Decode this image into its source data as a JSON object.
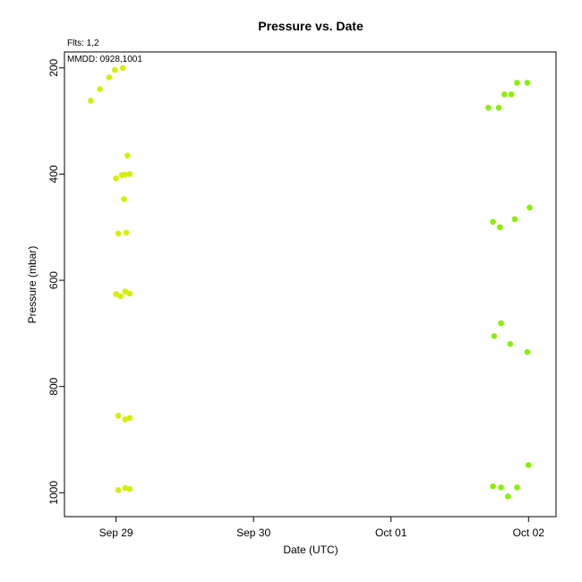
{
  "chart_data": {
    "type": "scatter",
    "title": "Pressure  vs. Date",
    "xlabel": "Date (UTC)",
    "ylabel": "Pressure (mbar)",
    "annotations": [
      "Flts: 1,2",
      "MMDD: 0928,1001"
    ],
    "x_ticks": [
      {
        "value": "2023-09-29T00:00",
        "label": "Sep 29"
      },
      {
        "value": "2023-09-30T00:00",
        "label": "Sep 30"
      },
      {
        "value": "2023-10-01T00:00",
        "label": "Oct 01"
      },
      {
        "value": "2023-10-02T00:00",
        "label": "Oct 02"
      }
    ],
    "y_ticks": [
      200,
      400,
      600,
      800,
      1000
    ],
    "xlim": [
      "2023-09-28T15:00",
      "2023-10-02T04:48"
    ],
    "ylim": [
      1045,
      170
    ],
    "y_reversed": true,
    "grid": false,
    "series": [
      {
        "color": "#d4f000",
        "points": [
          {
            "x": "2023-09-28T19:36",
            "y": 262
          },
          {
            "x": "2023-09-28T21:12",
            "y": 240
          },
          {
            "x": "2023-09-28T22:48",
            "y": 218
          },
          {
            "x": "2023-09-28T23:48",
            "y": 204
          },
          {
            "x": "2023-09-29T01:12",
            "y": 200
          },
          {
            "x": "2023-09-29T02:00",
            "y": 365
          },
          {
            "x": "2023-09-29T00:00",
            "y": 408
          },
          {
            "x": "2023-09-29T01:00",
            "y": 402
          },
          {
            "x": "2023-09-29T01:36",
            "y": 401
          },
          {
            "x": "2023-09-29T02:24",
            "y": 400
          },
          {
            "x": "2023-09-29T01:24",
            "y": 447
          },
          {
            "x": "2023-09-29T00:24",
            "y": 512
          },
          {
            "x": "2023-09-29T01:48",
            "y": 510
          },
          {
            "x": "2023-09-29T00:00",
            "y": 626
          },
          {
            "x": "2023-09-29T00:48",
            "y": 630
          },
          {
            "x": "2023-09-29T01:36",
            "y": 621
          },
          {
            "x": "2023-09-29T02:24",
            "y": 625
          },
          {
            "x": "2023-09-29T00:24",
            "y": 855
          },
          {
            "x": "2023-09-29T01:36",
            "y": 862
          },
          {
            "x": "2023-09-29T02:24",
            "y": 859
          },
          {
            "x": "2023-09-29T00:24",
            "y": 995
          },
          {
            "x": "2023-09-29T01:36",
            "y": 991
          },
          {
            "x": "2023-09-29T02:24",
            "y": 993
          }
        ]
      },
      {
        "color": "#88f000",
        "points": [
          {
            "x": "2023-10-01T17:00",
            "y": 275
          },
          {
            "x": "2023-10-01T18:48",
            "y": 275
          },
          {
            "x": "2023-10-01T19:48",
            "y": 250
          },
          {
            "x": "2023-10-01T21:00",
            "y": 250
          },
          {
            "x": "2023-10-01T22:00",
            "y": 228
          },
          {
            "x": "2023-10-01T23:48",
            "y": 228
          },
          {
            "x": "2023-10-01T17:48",
            "y": 490
          },
          {
            "x": "2023-10-01T19:00",
            "y": 500
          },
          {
            "x": "2023-10-01T21:36",
            "y": 485
          },
          {
            "x": "2023-10-02T00:12",
            "y": 463
          },
          {
            "x": "2023-10-01T18:00",
            "y": 705
          },
          {
            "x": "2023-10-01T19:12",
            "y": 681
          },
          {
            "x": "2023-10-01T20:48",
            "y": 720
          },
          {
            "x": "2023-10-01T23:48",
            "y": 735
          },
          {
            "x": "2023-10-01T17:48",
            "y": 988
          },
          {
            "x": "2023-10-01T19:12",
            "y": 990
          },
          {
            "x": "2023-10-01T20:24",
            "y": 1007
          },
          {
            "x": "2023-10-01T22:00",
            "y": 990
          },
          {
            "x": "2023-10-02T00:00",
            "y": 948
          }
        ]
      }
    ]
  }
}
